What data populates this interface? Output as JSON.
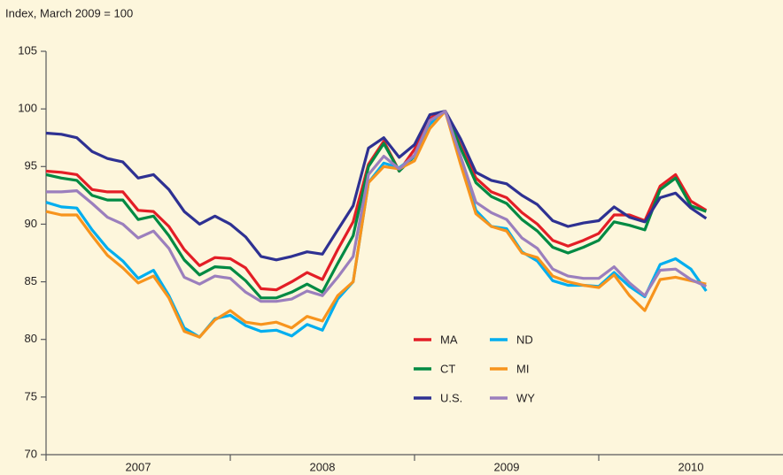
{
  "chart_data": {
    "type": "line",
    "subtitle": "Index, March 2009 = 100",
    "x": [
      2007,
      2007.083,
      2007.167,
      2007.25,
      2007.333,
      2007.417,
      2007.5,
      2007.583,
      2007.667,
      2007.75,
      2007.833,
      2007.917,
      2008,
      2008.083,
      2008.167,
      2008.25,
      2008.333,
      2008.417,
      2008.5,
      2008.583,
      2008.667,
      2008.75,
      2008.833,
      2008.917,
      2009,
      2009.083,
      2009.167,
      2009.25,
      2009.333,
      2009.417,
      2009.5,
      2009.583,
      2009.667,
      2009.75,
      2009.833,
      2009.917,
      2010,
      2010.083,
      2010.167,
      2010.25,
      2010.333,
      2010.417,
      2010.5,
      2010.583
    ],
    "xlim": [
      2007,
      2011
    ],
    "xticks": [
      2007,
      2008,
      2009,
      2010
    ],
    "ylim": [
      70,
      105
    ],
    "yticks": [
      70,
      75,
      80,
      85,
      90,
      95,
      100,
      105
    ],
    "grid": false,
    "series": [
      {
        "name": "MA",
        "color": "#e31e26",
        "values": [
          94.6,
          94.5,
          94.3,
          93.0,
          92.8,
          92.8,
          91.2,
          91.1,
          89.8,
          87.8,
          86.4,
          87.1,
          87.0,
          86.2,
          84.4,
          84.3,
          85.0,
          85.8,
          85.2,
          87.8,
          90.2,
          95.2,
          97.2,
          94.6,
          96.5,
          99.2,
          99.8,
          96.8,
          94.0,
          92.8,
          92.3,
          91.0,
          90.0,
          88.6,
          88.1,
          88.6,
          89.2,
          90.8,
          90.8,
          90.3,
          93.3,
          94.3,
          92.0,
          91.2
        ]
      },
      {
        "name": "CT",
        "color": "#008a43",
        "values": [
          94.3,
          94.0,
          93.8,
          92.5,
          92.1,
          92.1,
          90.4,
          90.7,
          89.0,
          86.9,
          85.6,
          86.3,
          86.2,
          85.1,
          83.6,
          83.6,
          84.1,
          84.8,
          84.1,
          86.6,
          89.0,
          95.0,
          97.0,
          94.6,
          95.9,
          98.9,
          99.8,
          96.6,
          93.6,
          92.4,
          91.8,
          90.4,
          89.4,
          88.0,
          87.5,
          88.0,
          88.6,
          90.2,
          89.9,
          89.5,
          93.0,
          94.0,
          91.6,
          91.1
        ]
      },
      {
        "name": "U.S.",
        "color": "#2e3192",
        "values": [
          97.9,
          97.8,
          97.5,
          96.3,
          95.7,
          95.4,
          94.0,
          94.3,
          93.0,
          91.1,
          90.0,
          90.7,
          90.0,
          88.9,
          87.2,
          86.9,
          87.2,
          87.6,
          87.4,
          89.5,
          91.6,
          96.6,
          97.5,
          95.8,
          96.9,
          99.5,
          99.8,
          97.4,
          94.5,
          93.8,
          93.5,
          92.5,
          91.7,
          90.3,
          89.8,
          90.1,
          90.3,
          91.5,
          90.6,
          90.2,
          92.3,
          92.7,
          91.4,
          90.5
        ]
      },
      {
        "name": "ND",
        "color": "#00aeef",
        "values": [
          91.9,
          91.5,
          91.4,
          89.5,
          87.9,
          86.8,
          85.3,
          86.0,
          83.8,
          81.0,
          80.2,
          81.8,
          82.1,
          81.2,
          80.7,
          80.8,
          80.3,
          81.3,
          80.8,
          83.5,
          85.0,
          93.6,
          95.3,
          94.9,
          95.9,
          98.7,
          99.8,
          95.6,
          91.2,
          89.8,
          89.6,
          87.6,
          86.8,
          85.1,
          84.7,
          84.7,
          84.6,
          85.8,
          84.6,
          83.7,
          86.5,
          87.0,
          86.1,
          84.2
        ]
      },
      {
        "name": "MI",
        "color": "#f7941d",
        "values": [
          91.1,
          90.8,
          90.8,
          89.0,
          87.3,
          86.2,
          84.9,
          85.5,
          83.6,
          80.7,
          80.2,
          81.7,
          82.5,
          81.5,
          81.3,
          81.5,
          81.0,
          82.0,
          81.6,
          83.8,
          85.0,
          93.6,
          95.0,
          94.8,
          95.5,
          98.3,
          99.8,
          95.2,
          90.9,
          89.8,
          89.4,
          87.5,
          87.1,
          85.5,
          85.0,
          84.7,
          84.5,
          85.6,
          83.8,
          82.5,
          85.2,
          85.4,
          85.1,
          84.8
        ]
      },
      {
        "name": "WY",
        "color": "#9b7fbd",
        "values": [
          92.8,
          92.8,
          92.9,
          91.8,
          90.6,
          90.0,
          88.8,
          89.4,
          87.9,
          85.4,
          84.8,
          85.5,
          85.3,
          84.1,
          83.3,
          83.3,
          83.5,
          84.2,
          83.8,
          85.4,
          87.2,
          94.3,
          95.9,
          94.8,
          96.0,
          99.0,
          99.8,
          95.9,
          91.9,
          91.0,
          90.4,
          88.8,
          87.9,
          86.1,
          85.5,
          85.3,
          85.3,
          86.3,
          84.9,
          83.8,
          86.0,
          86.1,
          85.2,
          84.6
        ]
      }
    ]
  }
}
